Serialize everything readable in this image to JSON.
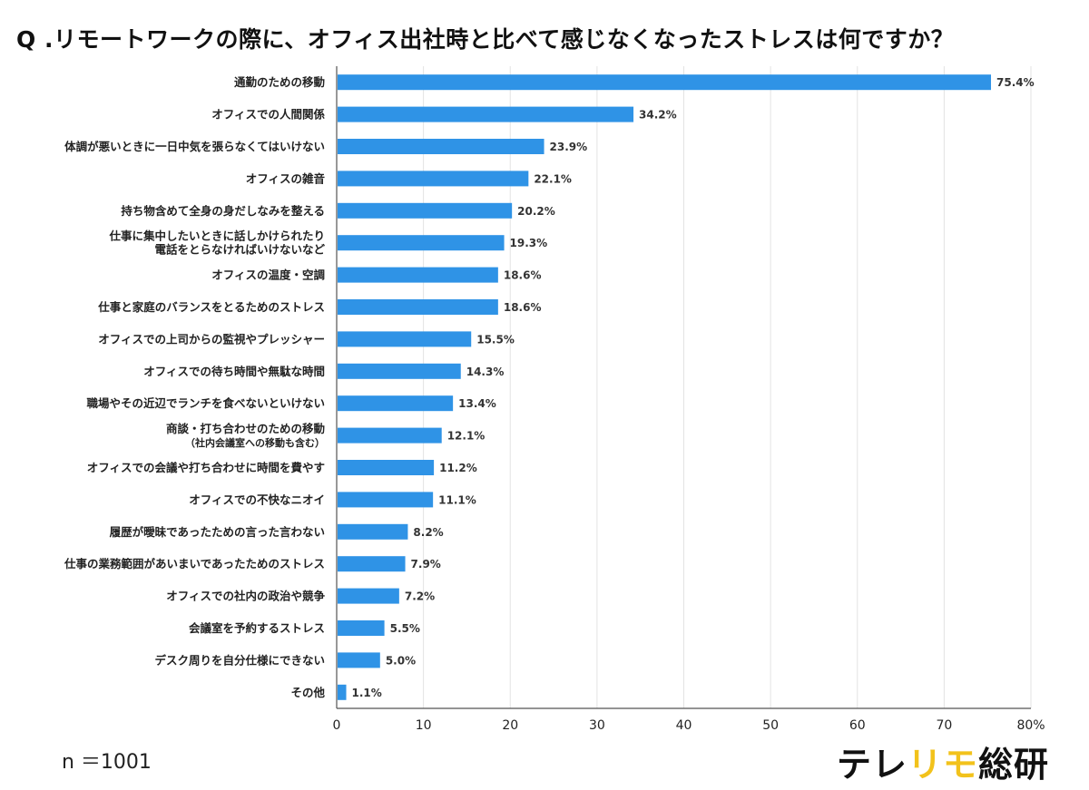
{
  "title": "Q .リモートワークの際に、オフィス出社時と比べて感じなくなったストレスは何ですか？",
  "sample_size": "n ＝1001",
  "brand": {
    "part1": "テレ",
    "part2": "リモ",
    "part3": "総研"
  },
  "colors": {
    "bar": "#2f93e6",
    "brand_accent": "#f2c21b"
  },
  "chart_data": {
    "type": "bar",
    "orientation": "horizontal",
    "categories": [
      [
        "通勤のための移動"
      ],
      [
        "オフィスでの人間関係"
      ],
      [
        "体調が悪いときに一日中気を張らなくてはいけない"
      ],
      [
        "オフィスの雑音"
      ],
      [
        "持ち物含めて全身の身だしなみを整える"
      ],
      [
        "仕事に集中したいときに話しかけられたり",
        "電話をとらなければいけないなど"
      ],
      [
        "オフィスの温度・空調"
      ],
      [
        "仕事と家庭のバランスをとるためのストレス"
      ],
      [
        "オフィスでの上司からの監視やプレッシャー"
      ],
      [
        "オフィスでの待ち時間や無駄な時間"
      ],
      [
        "職場やその近辺でランチを食べないといけない"
      ],
      [
        "商談・打ち合わせのための移動",
        "（社内会議室への移動も含む）"
      ],
      [
        "オフィスでの会議や打ち合わせに時間を費やす"
      ],
      [
        "オフィスでの不快なニオイ"
      ],
      [
        "履歴が曖昧であったための言った言わない"
      ],
      [
        "仕事の業務範囲があいまいであったためのストレス"
      ],
      [
        "オフィスでの社内の政治や競争"
      ],
      [
        "会議室を予約するストレス"
      ],
      [
        "デスク周りを自分仕様にできない"
      ],
      [
        "その他"
      ]
    ],
    "values": [
      75.4,
      34.2,
      23.9,
      22.1,
      20.2,
      19.3,
      18.6,
      18.6,
      15.5,
      14.3,
      13.4,
      12.1,
      11.2,
      11.1,
      8.2,
      7.9,
      7.2,
      5.5,
      5.0,
      1.1
    ],
    "value_labels": [
      "75.4%",
      "34.2%",
      "23.9%",
      "22.1%",
      "20.2%",
      "19.3%",
      "18.6%",
      "18.6%",
      "15.5%",
      "14.3%",
      "13.4%",
      "12.1%",
      "11.2%",
      "11.1%",
      "8.2%",
      "7.9%",
      "7.2%",
      "5.5%",
      "5.0%",
      "1.1%"
    ],
    "xlim": [
      0,
      80
    ],
    "xticks": [
      "0",
      "10",
      "20",
      "30",
      "40",
      "50",
      "60",
      "70",
      "80%"
    ],
    "grid": true
  }
}
